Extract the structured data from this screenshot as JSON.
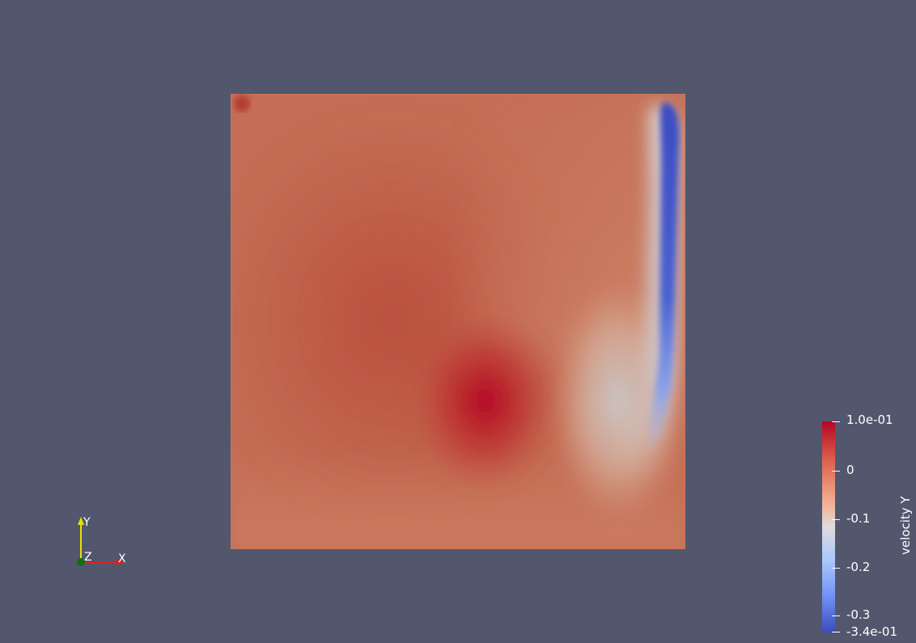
{
  "colors": {
    "background": "#52576e",
    "colormap_top": "#b40426",
    "colormap_mid": "#dddcdc",
    "colormap_bottom": "#3b4cc0",
    "axis_x": "#e02020",
    "axis_y": "#e8e000",
    "axis_z": "#107010"
  },
  "scalar_bar": {
    "title": "velocity Y",
    "range": [
      -0.34,
      0.1
    ],
    "max_label": "1.0e-01",
    "min_label": "-3.4e-01",
    "tick_labels": [
      "0",
      "-0.1",
      "-0.2",
      "-0.3"
    ]
  },
  "orientation_axes": {
    "x_label": "X",
    "y_label": "Y",
    "z_label": "Z"
  }
}
